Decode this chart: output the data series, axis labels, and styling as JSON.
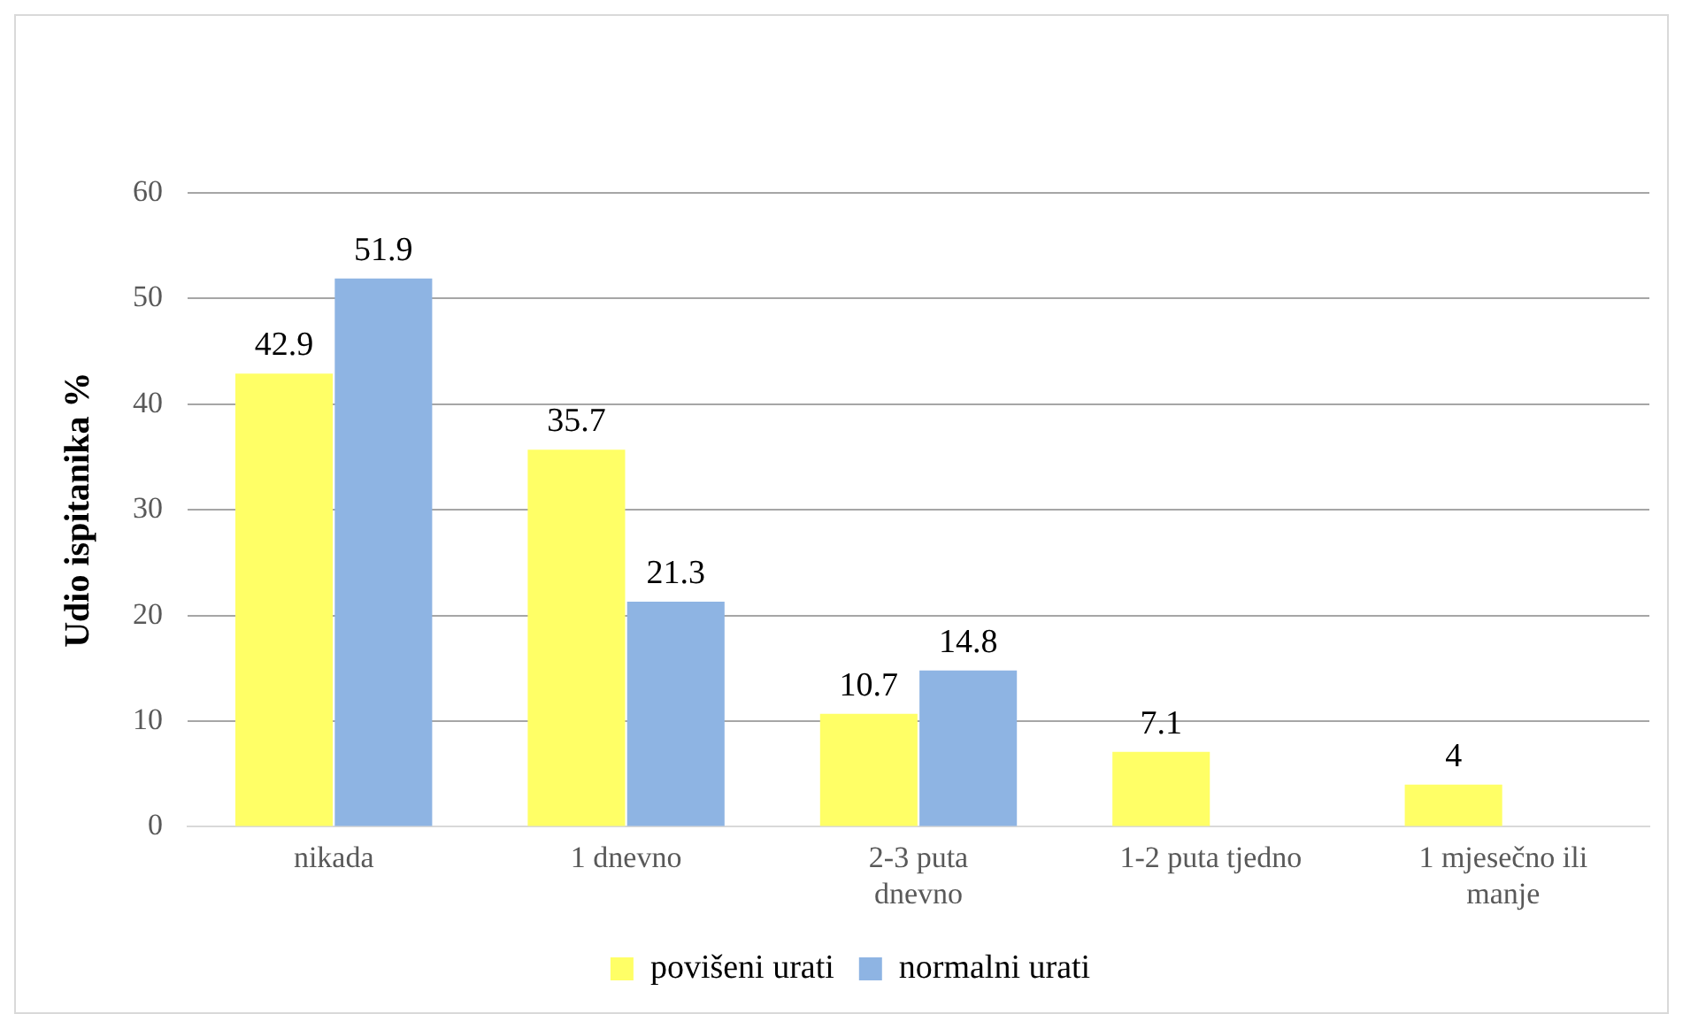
{
  "chart_data": {
    "type": "bar",
    "ylabel": "Udio ispitanika %",
    "categories": [
      "nikada",
      "1 dnevno",
      "2-3 puta dnevno",
      "1-2 puta tjedno",
      "1 mjesečno ili manje"
    ],
    "series": [
      {
        "name": "povišeni urati",
        "color": "#ffff66",
        "values": [
          42.9,
          35.7,
          10.7,
          7.1,
          4
        ]
      },
      {
        "name": "normalni urati",
        "color": "#8eb4e3",
        "values": [
          51.9,
          21.3,
          14.8,
          null,
          null
        ]
      }
    ],
    "ylim": [
      0,
      60
    ],
    "yticks": [
      0,
      10,
      20,
      30,
      40,
      50,
      60
    ],
    "grid": "y",
    "legend": "bottom",
    "data_labels": true
  }
}
